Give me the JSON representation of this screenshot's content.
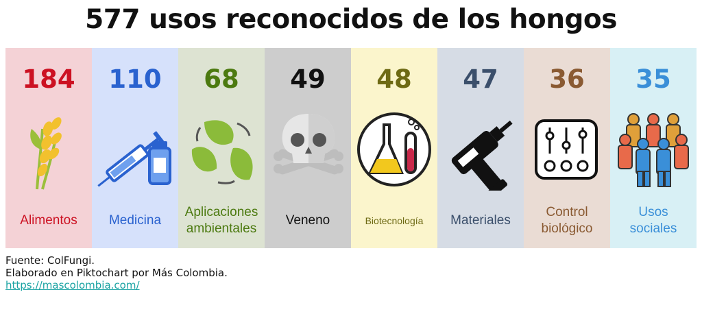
{
  "title": "577 usos reconocidos de los hongos",
  "chart_data": {
    "type": "bar",
    "title": "577 usos reconocidos de los hongos",
    "categories": [
      "Alimentos",
      "Medicina",
      "Aplicaciones ambientales",
      "Veneno",
      "Biotecnología",
      "Materiales",
      "Control biológico",
      "Usos sociales"
    ],
    "values": [
      184,
      110,
      68,
      49,
      48,
      47,
      36,
      35
    ]
  },
  "panels": [
    {
      "value": "184",
      "label_lines": [
        "Alimentos"
      ],
      "icon": "wheat-icon",
      "bg": "#f4d2d6",
      "color": "#cc1122"
    },
    {
      "value": "110",
      "label_lines": [
        "Medicina"
      ],
      "icon": "syringe-vial-icon",
      "bg": "#d6e1fb",
      "color": "#2a62cf"
    },
    {
      "value": "68",
      "label_lines": [
        "Aplicaciones",
        "ambientales"
      ],
      "icon": "recycle-leaves-icon",
      "bg": "#dde3d2",
      "color": "#4c7a10"
    },
    {
      "value": "49",
      "label_lines": [
        "Veneno"
      ],
      "icon": "skull-crossbones-icon",
      "bg": "#cdcdcd",
      "color": "#111111"
    },
    {
      "value": "48",
      "label_lines": [
        "Biotecnología"
      ],
      "icon": "lab-flask-icon",
      "bg": "#fbf5cc",
      "color": "#6e6a14"
    },
    {
      "value": "47",
      "label_lines": [
        "Materiales"
      ],
      "icon": "drill-icon",
      "bg": "#d6dce5",
      "color": "#3b4f6b"
    },
    {
      "value": "36",
      "label_lines": [
        "Control",
        "biológico"
      ],
      "icon": "control-panel-icon",
      "bg": "#eadcd4",
      "color": "#8a5a32"
    },
    {
      "value": "35",
      "label_lines": [
        "Usos",
        "sociales"
      ],
      "icon": "people-group-icon",
      "bg": "#d8f0f5",
      "color": "#3a8fd8"
    }
  ],
  "footer": {
    "source": "Fuente: ColFungi.",
    "credit": "Elaborado en Piktochart por Más Colombia.",
    "link": "https://mascolombia.com/"
  }
}
